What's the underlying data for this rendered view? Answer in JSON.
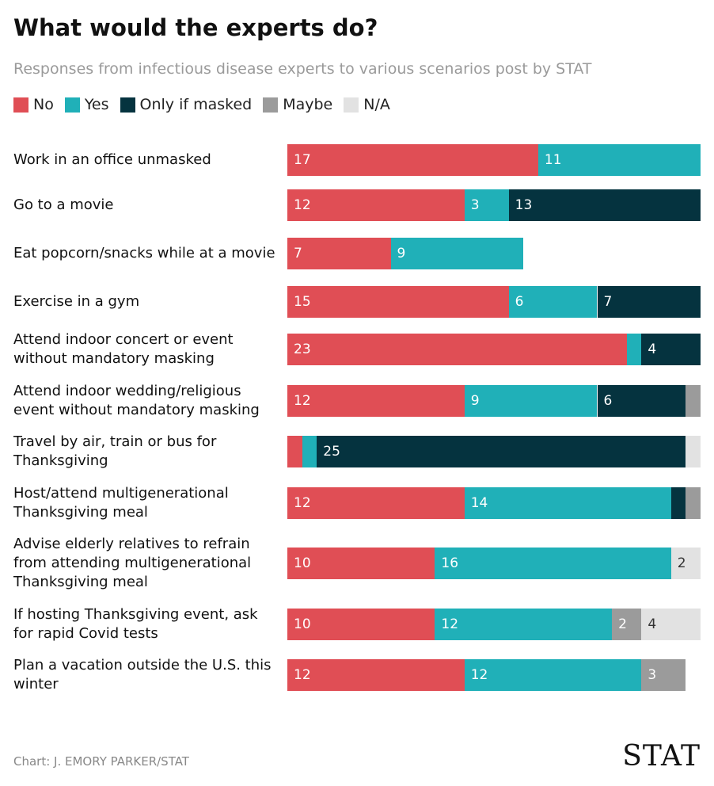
{
  "chart_data": {
    "type": "stacked-bar",
    "title": "What would the experts do?",
    "subtitle": "Responses from infectious disease experts to various scenarios post by STAT",
    "categories": [
      "Work in an office unmasked",
      "Go to a movie",
      "Eat popcorn/snacks while at a movie",
      "Exercise in a gym",
      "Attend indoor concert or event without mandatory masking",
      "Attend indoor wedding/religious event without mandatory masking",
      "Travel by air, train or bus for Thanksgiving",
      "Host/attend multigenerational Thanksgiving meal",
      "Advise elderly relatives to refrain from attending multigenerational Thanksgiving meal",
      "If hosting Thanksgiving event, ask for rapid Covid tests",
      "Plan a vacation outside the U.S. this winter"
    ],
    "series": [
      {
        "name": "No",
        "color": "#e04e55",
        "values": [
          17,
          12,
          7,
          15,
          23,
          12,
          1,
          12,
          10,
          10,
          12
        ]
      },
      {
        "name": "Yes",
        "color": "#20b0b8",
        "values": [
          11,
          3,
          9,
          6,
          1,
          9,
          1,
          14,
          16,
          12,
          12
        ]
      },
      {
        "name": "Only if masked",
        "color": "#05333f",
        "values": [
          0,
          13,
          0,
          7,
          4,
          6,
          25,
          1,
          0,
          0,
          0
        ]
      },
      {
        "name": "Maybe",
        "color": "#9b9b9b",
        "values": [
          0,
          0,
          0,
          0,
          0,
          1,
          0,
          1,
          0,
          2,
          3
        ]
      },
      {
        "name": "N/A",
        "color": "#e2e2e2",
        "values": [
          0,
          0,
          0,
          0,
          0,
          0,
          1,
          0,
          2,
          4,
          0
        ]
      }
    ],
    "xlim": [
      0,
      28
    ],
    "source": "Chart: J. EMORY PARKER/STAT",
    "brand": "STAT"
  }
}
